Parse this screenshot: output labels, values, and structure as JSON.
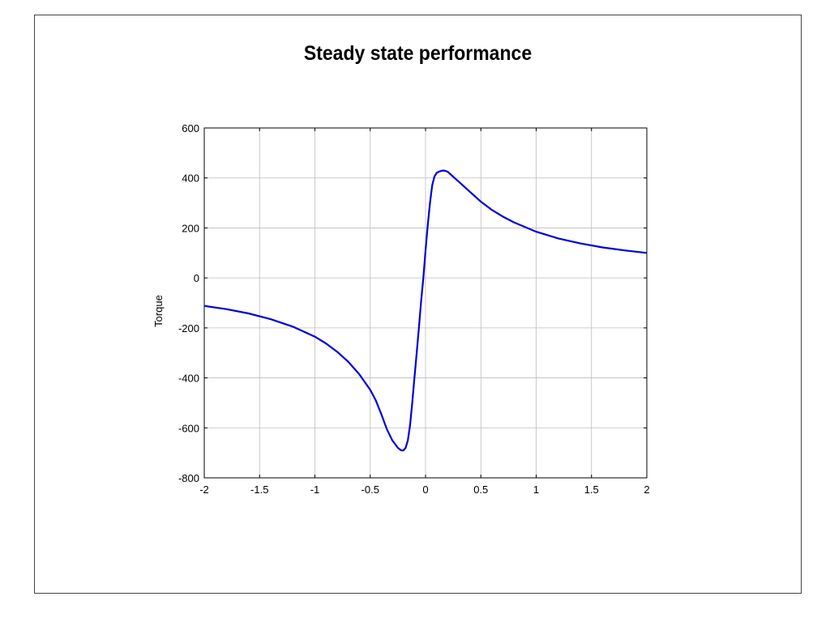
{
  "chart_data": {
    "type": "line",
    "title": "Steady state performance",
    "xlabel": "",
    "ylabel": "Torque",
    "xlim": [
      -2,
      2
    ],
    "ylim": [
      -800,
      600
    ],
    "x_ticks": [
      -2,
      -1.5,
      -1,
      -0.5,
      0,
      0.5,
      1,
      1.5,
      2
    ],
    "y_ticks": [
      -800,
      -600,
      -400,
      -200,
      0,
      200,
      400,
      600
    ],
    "grid": true,
    "series": [
      {
        "color": "#0000dd",
        "x": [
          -2,
          -1.8,
          -1.6,
          -1.4,
          -1.2,
          -1.0,
          -0.9,
          -0.8,
          -0.7,
          -0.6,
          -0.5,
          -0.45,
          -0.4,
          -0.35,
          -0.3,
          -0.25,
          -0.22,
          -0.2,
          -0.18,
          -0.16,
          -0.14,
          -0.12,
          -0.1,
          -0.08,
          -0.06,
          -0.04,
          -0.02,
          0,
          0.02,
          0.04,
          0.06,
          0.08,
          0.1,
          0.12,
          0.14,
          0.16,
          0.18,
          0.2,
          0.25,
          0.3,
          0.4,
          0.5,
          0.6,
          0.7,
          0.8,
          1.0,
          1.2,
          1.4,
          1.6,
          1.8,
          2.0
        ],
        "y": [
          -112,
          -125,
          -142,
          -165,
          -195,
          -235,
          -262,
          -295,
          -335,
          -385,
          -448,
          -490,
          -545,
          -605,
          -650,
          -680,
          -690,
          -690,
          -680,
          -650,
          -590,
          -500,
          -400,
          -300,
          -200,
          -95,
          0,
          110,
          210,
          300,
          370,
          405,
          420,
          425,
          428,
          430,
          428,
          425,
          405,
          385,
          345,
          305,
          272,
          245,
          222,
          185,
          158,
          138,
          122,
          110,
          100
        ]
      }
    ]
  }
}
